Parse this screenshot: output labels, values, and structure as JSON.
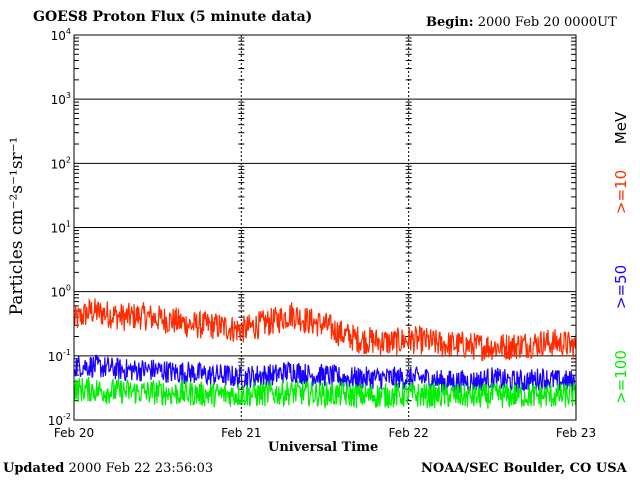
{
  "header": {
    "title": "GOES8 Proton Flux (5 minute data)",
    "begin_label": "Begin:",
    "begin_value": "2000 Feb 20 0000UT"
  },
  "footer": {
    "updated_label": "Updated",
    "updated_value": "2000 Feb 22 23:56:03",
    "credit": "NOAA/SEC Boulder, CO USA"
  },
  "chart_data": {
    "type": "line",
    "title": "GOES8 Proton Flux (5 minute data)",
    "xlabel": "Universal Time",
    "ylabel": "Particles cm⁻²s⁻¹sr⁻¹",
    "units_label": "MeV",
    "yscale": "log",
    "ylim": [
      0.01,
      10000
    ],
    "xlim": [
      0,
      3
    ],
    "x_ticks": [
      "Feb 20",
      "Feb 21",
      "Feb 22",
      "Feb 23"
    ],
    "y_ticks": [
      {
        "base": "10",
        "exp": "4",
        "value": 10000
      },
      {
        "base": "10",
        "exp": "3",
        "value": 1000
      },
      {
        "base": "10",
        "exp": "2",
        "value": 100
      },
      {
        "base": "10",
        "exp": "1",
        "value": 10
      },
      {
        "base": "10",
        "exp": "0",
        "value": 1
      },
      {
        "base": "10",
        "exp": "-1",
        "value": 0.1
      },
      {
        "base": "10",
        "exp": "-2",
        "value": 0.01
      }
    ],
    "grid": true,
    "series": [
      {
        "name": ">=10",
        "color": "#ff2a00",
        "x": [
          0.0,
          0.1,
          0.2,
          0.3,
          0.4,
          0.5,
          0.6,
          0.7,
          0.8,
          0.9,
          1.0,
          1.1,
          1.2,
          1.3,
          1.4,
          1.5,
          1.6,
          1.7,
          1.8,
          1.9,
          2.0,
          2.1,
          2.2,
          2.3,
          2.4,
          2.5,
          2.6,
          2.7,
          2.8,
          2.9,
          3.0
        ],
        "values": [
          0.35,
          0.5,
          0.45,
          0.4,
          0.42,
          0.38,
          0.35,
          0.3,
          0.3,
          0.28,
          0.25,
          0.3,
          0.35,
          0.45,
          0.35,
          0.3,
          0.22,
          0.18,
          0.17,
          0.16,
          0.18,
          0.17,
          0.15,
          0.15,
          0.14,
          0.14,
          0.14,
          0.15,
          0.16,
          0.16,
          0.14
        ]
      },
      {
        "name": ">=50",
        "color": "#1a00ff",
        "x": [
          0.0,
          0.1,
          0.2,
          0.3,
          0.4,
          0.5,
          0.6,
          0.7,
          0.8,
          0.9,
          1.0,
          1.1,
          1.2,
          1.3,
          1.4,
          1.5,
          1.6,
          1.7,
          1.8,
          1.9,
          2.0,
          2.1,
          2.2,
          2.3,
          2.4,
          2.5,
          2.6,
          2.7,
          2.8,
          2.9,
          3.0
        ],
        "values": [
          0.07,
          0.07,
          0.065,
          0.06,
          0.06,
          0.06,
          0.055,
          0.055,
          0.05,
          0.05,
          0.045,
          0.05,
          0.05,
          0.06,
          0.05,
          0.05,
          0.045,
          0.045,
          0.045,
          0.045,
          0.045,
          0.045,
          0.04,
          0.04,
          0.04,
          0.045,
          0.04,
          0.04,
          0.045,
          0.04,
          0.04
        ]
      },
      {
        "name": ">=100",
        "color": "#00ee00",
        "x": [
          0.0,
          0.1,
          0.2,
          0.3,
          0.4,
          0.5,
          0.6,
          0.7,
          0.8,
          0.9,
          1.0,
          1.1,
          1.2,
          1.3,
          1.4,
          1.5,
          1.6,
          1.7,
          1.8,
          1.9,
          2.0,
          2.1,
          2.2,
          2.3,
          2.4,
          2.5,
          2.6,
          2.7,
          2.8,
          2.9,
          3.0
        ],
        "values": [
          0.03,
          0.03,
          0.028,
          0.028,
          0.027,
          0.027,
          0.026,
          0.026,
          0.025,
          0.025,
          0.025,
          0.025,
          0.026,
          0.027,
          0.026,
          0.025,
          0.025,
          0.024,
          0.024,
          0.024,
          0.025,
          0.024,
          0.024,
          0.024,
          0.023,
          0.024,
          0.024,
          0.024,
          0.024,
          0.024,
          0.024
        ]
      }
    ]
  }
}
